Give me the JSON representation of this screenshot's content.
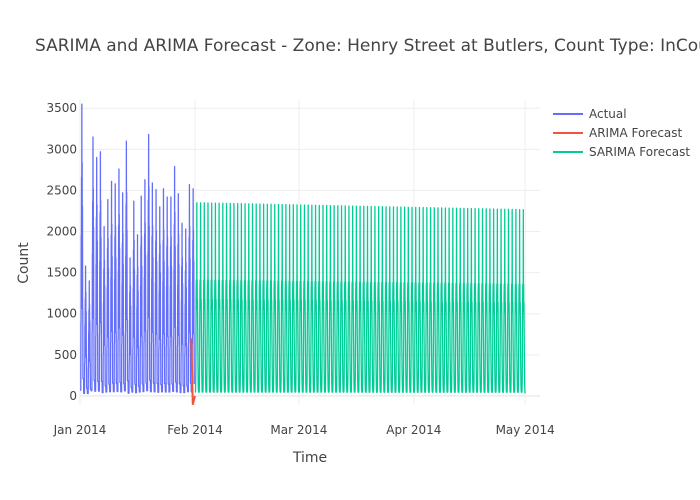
{
  "chart_data": {
    "type": "line",
    "title": "SARIMA and ARIMA Forecast - Zone: Henry Street at Butlers, Count Type: InCount, Pr",
    "xlabel": "Time",
    "ylabel": "Count",
    "x_range": [
      "2014-01-01",
      "2014-05-05"
    ],
    "ylim": [
      -110,
      3600
    ],
    "x_ticks": [
      {
        "date": "2014-01-01",
        "label": "Jan 2014"
      },
      {
        "date": "2014-02-01",
        "label": "Feb 2014"
      },
      {
        "date": "2014-03-01",
        "label": "Mar 2014"
      },
      {
        "date": "2014-04-01",
        "label": "Apr 2014"
      },
      {
        "date": "2014-05-01",
        "label": "May 2014"
      }
    ],
    "y_ticks": [
      0,
      500,
      1000,
      1500,
      2000,
      2500,
      3000,
      3500
    ],
    "y_tick_labels": [
      "0",
      "500",
      "1000",
      "1500",
      "2000",
      "2500",
      "3000",
      "3500"
    ],
    "grid": true,
    "legend_position": "top-right",
    "series": [
      {
        "name": "Actual",
        "color": "#636efa",
        "start": "2014-01-01",
        "end": "2014-01-31",
        "daily_peaks": [
          3550,
          1580,
          1400,
          3150,
          2900,
          2970,
          2060,
          2390,
          2610,
          2580,
          2760,
          2470,
          3100,
          1680,
          2370,
          1960,
          2430,
          2630,
          3180,
          2590,
          2510,
          2300,
          2520,
          2420,
          2420,
          2790,
          2460,
          2100,
          2030,
          2570,
          2520
        ],
        "daily_min": 30
      },
      {
        "name": "ARIMA Forecast",
        "color": "#ef553b",
        "points": [
          {
            "x": "2014-01-31",
            "y": 700
          },
          {
            "x": "2014-01-31",
            "y": -100
          },
          {
            "x": "2014-02-01",
            "y": 0
          }
        ]
      },
      {
        "name": "SARIMA Forecast",
        "color": "#00cc96",
        "start": "2014-02-01",
        "end": "2014-05-01",
        "peak_start": 2350,
        "peak_end": 2265,
        "trough": 30
      }
    ]
  }
}
